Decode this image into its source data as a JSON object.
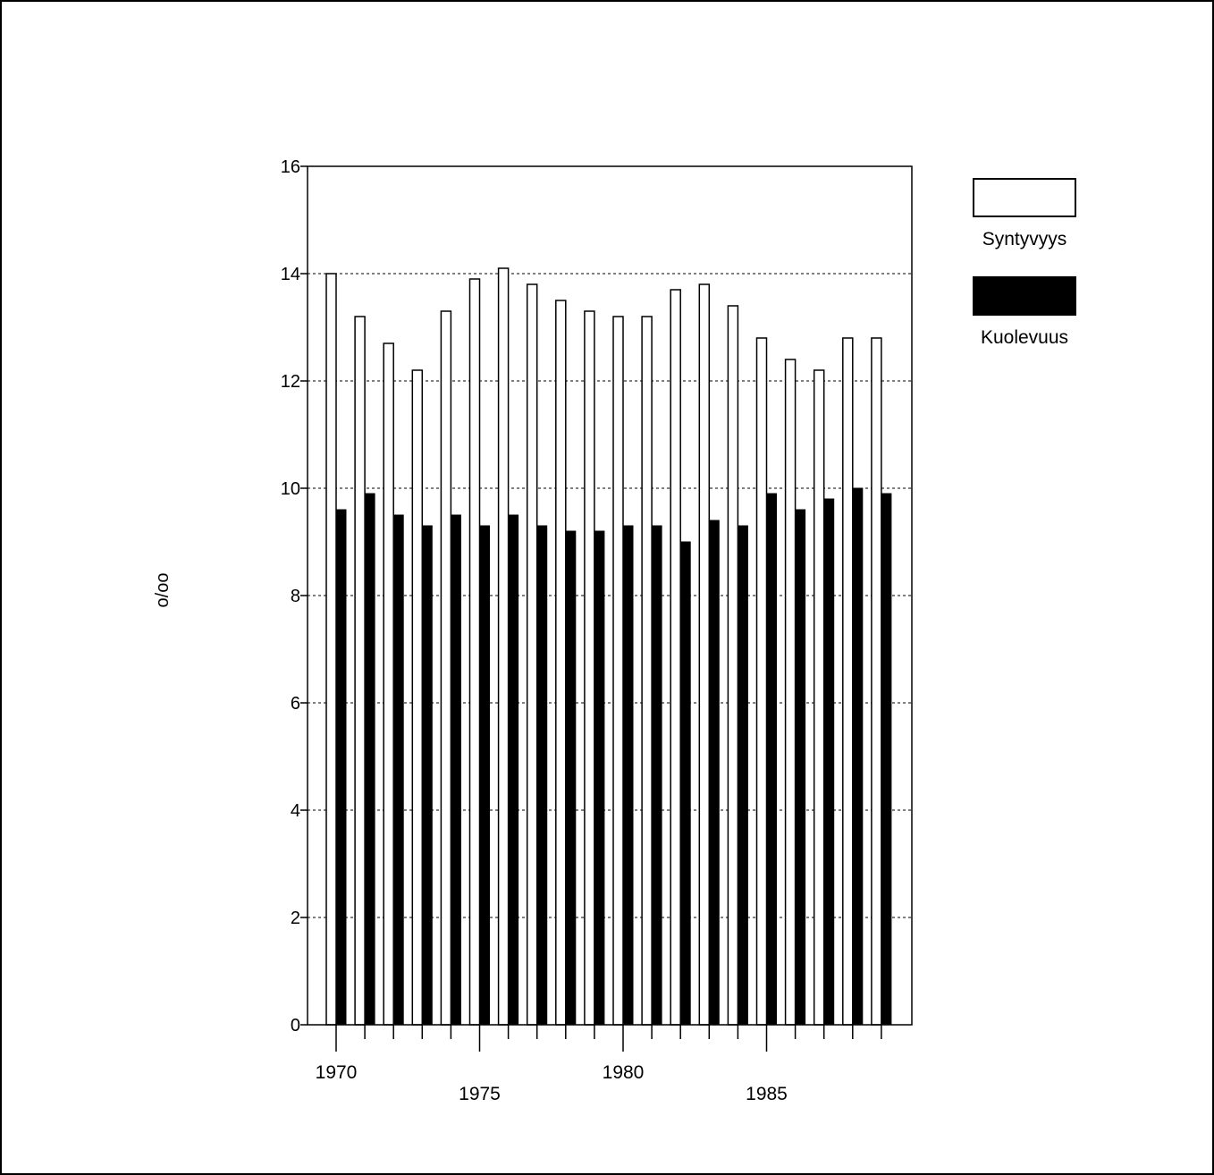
{
  "chart_data": {
    "type": "bar",
    "title": "",
    "xlabel": "",
    "ylabel": "o/oo",
    "ylim": [
      0,
      16
    ],
    "yticks": [
      0,
      2,
      4,
      6,
      8,
      10,
      12,
      14,
      16
    ],
    "grid": "horizontal-dotted",
    "legend_position": "right",
    "categories": [
      1970,
      1971,
      1972,
      1973,
      1974,
      1975,
      1976,
      1977,
      1978,
      1979,
      1980,
      1981,
      1982,
      1983,
      1984,
      1985,
      1986,
      1987,
      1988,
      1989
    ],
    "xtick_labels": [
      {
        "year": 1970,
        "label": "1970",
        "row": 0
      },
      {
        "year": 1975,
        "label": "1975",
        "row": 1
      },
      {
        "year": 1980,
        "label": "1980",
        "row": 0
      },
      {
        "year": 1985,
        "label": "1985",
        "row": 1
      }
    ],
    "series": [
      {
        "name": "Syntyvyys",
        "color": "#ffffff",
        "values": [
          14.0,
          13.2,
          12.7,
          12.2,
          13.3,
          13.9,
          14.1,
          13.8,
          13.5,
          13.3,
          13.2,
          13.2,
          13.7,
          13.8,
          13.4,
          12.8,
          12.4,
          12.2,
          12.8,
          12.8
        ]
      },
      {
        "name": "Kuolevuus",
        "color": "#000000",
        "values": [
          9.6,
          9.9,
          9.5,
          9.3,
          9.5,
          9.3,
          9.5,
          9.3,
          9.2,
          9.2,
          9.3,
          9.3,
          9.0,
          9.4,
          9.3,
          9.9,
          9.6,
          9.8,
          10.0,
          9.9
        ]
      }
    ]
  }
}
